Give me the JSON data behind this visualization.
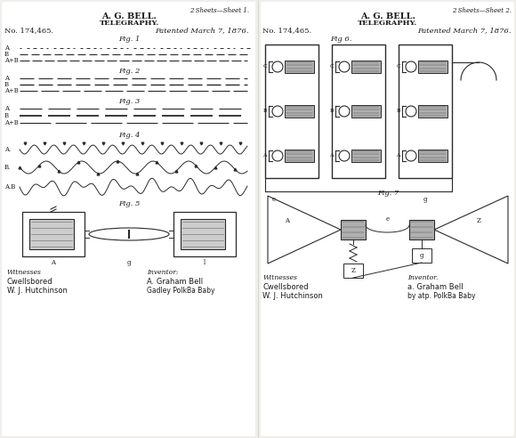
{
  "bg_color": "#f0eeea",
  "panel_bg": "#ffffff",
  "line_color": "#2a2a2a",
  "text_color": "#1a1a1a",
  "gray_fill": "#aaaaaa",
  "left_panel": {
    "sheet_label": "2 Sheets—Sheet 1.",
    "inventor": "A. G. BELL.",
    "title": "TELEGRAPHY.",
    "patent_no": "No. 174,465.",
    "patent_date": "Patented March 7, 1876.",
    "fig1_label": "Fig. 1",
    "fig2_label": "Fig. 2",
    "fig3_label": "Fig. 3",
    "fig4_label": "Fig. 4",
    "fig5_label": "Fig. 5",
    "witnesses_label": "Witnesses",
    "inventor_label": "Inventor:",
    "witness1": "Cwellsbored",
    "witness2": "W. J. Hutchinson",
    "inv_sig1": "A. Graham Bell",
    "inv_sig2": "Gadley PolkBa Baby"
  },
  "right_panel": {
    "sheet_label": "2 Sheets—Sheet 2.",
    "inventor": "A. G. BELL.",
    "title": "TELEGRAPHY.",
    "patent_no": "No. 174,465.",
    "patent_date": "Patented March 7, 1876.",
    "fig6_label": "Fig 6.",
    "fig7_label": "Fig. 7",
    "witnesses_label": "Witnesses",
    "inventor_label": "Inventor.",
    "witness1": "Cwellsbored",
    "witness2": "W. J. Hutchinson",
    "inv_sig1": "a. Graham Bell",
    "inv_sig2": "by atp. PolkBa Baby"
  }
}
